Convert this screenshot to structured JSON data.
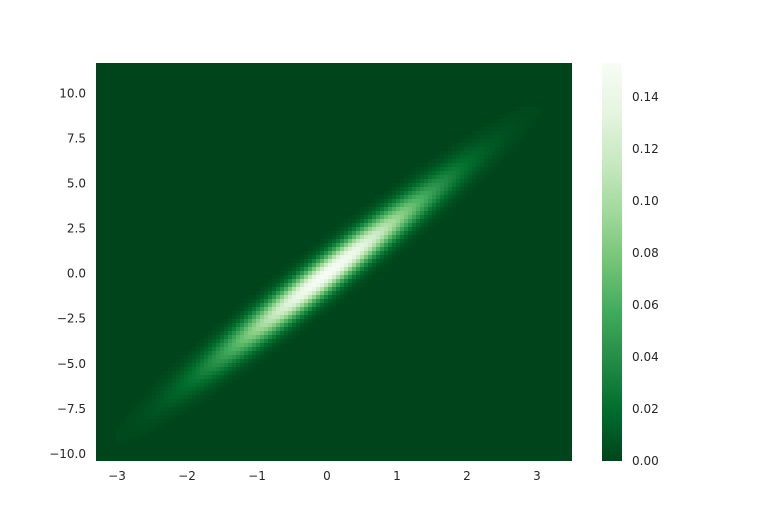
{
  "chart_data": {
    "type": "heatmap",
    "title": "",
    "xlabel": "",
    "ylabel": "",
    "xlim": [
      -3.3,
      3.5
    ],
    "ylim": [
      -10.4,
      11.7
    ],
    "x_ticks": [
      -3,
      -2,
      -1,
      0,
      1,
      2,
      3
    ],
    "x_tick_labels": [
      "−3",
      "−2",
      "−1",
      "0",
      "1",
      "2",
      "3"
    ],
    "y_ticks": [
      -10.0,
      -7.5,
      -5.0,
      -2.5,
      0.0,
      2.5,
      5.0,
      7.5,
      10.0
    ],
    "y_tick_labels": [
      "−10.0",
      "−7.5",
      "−5.0",
      "−2.5",
      "0.0",
      "2.5",
      "5.0",
      "7.5",
      "10.0"
    ],
    "density": {
      "description_values": "2D KDE of correlated normal data, y ≈ 3x",
      "peak": 0.153,
      "center": [
        0,
        0
      ],
      "slope": 3.0,
      "sigma_along_x": 1.0,
      "sigma_perpendicular": 0.72
    },
    "colorbar": {
      "cmap": "Greens_r",
      "range": [
        0.0,
        0.153
      ],
      "ticks": [
        0.0,
        0.02,
        0.04,
        0.06,
        0.08,
        0.1,
        0.12,
        0.14
      ],
      "tick_labels": [
        "0.00",
        "0.02",
        "0.04",
        "0.06",
        "0.08",
        "0.10",
        "0.12",
        "0.14"
      ],
      "colors": [
        "#00441b",
        "#006d2c",
        "#238b45",
        "#41ab5d",
        "#74c476",
        "#a1d99b",
        "#c7e9c0",
        "#e5f5e0",
        "#f7fcf5"
      ]
    },
    "grid": false
  }
}
